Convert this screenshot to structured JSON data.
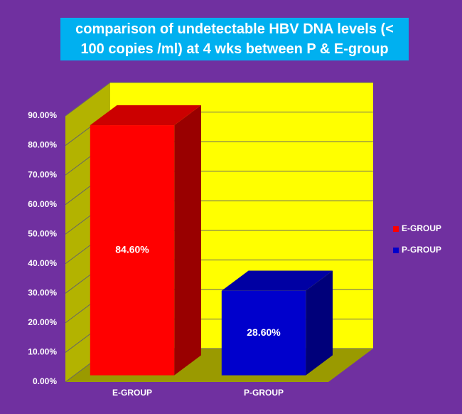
{
  "chart_data": {
    "type": "bar3d",
    "title": "comparison of undetectable HBV DNA levels (< 100 copies /ml) at 4 wks between P & E-group",
    "categories": [
      "E-GROUP",
      "P-GROUP"
    ],
    "values": [
      84.6,
      28.6
    ],
    "value_labels": [
      "84.60%",
      "28.60%"
    ],
    "colors": [
      "#ff0000",
      "#0000cc"
    ],
    "ylim": [
      0,
      90
    ],
    "yticks": [
      {
        "value": 0,
        "label": "0.00%"
      },
      {
        "value": 10,
        "label": "10.00%"
      },
      {
        "value": 20,
        "label": "20.00%"
      },
      {
        "value": 30,
        "label": "30.00%"
      },
      {
        "value": 40,
        "label": "40.00%"
      },
      {
        "value": 50,
        "label": "50.00%"
      },
      {
        "value": 60,
        "label": "60.00%"
      },
      {
        "value": 70,
        "label": "70.00%"
      },
      {
        "value": 80,
        "label": "80.00%"
      },
      {
        "value": 90,
        "label": "90.00%"
      }
    ],
    "grid": true,
    "legend": "right"
  }
}
